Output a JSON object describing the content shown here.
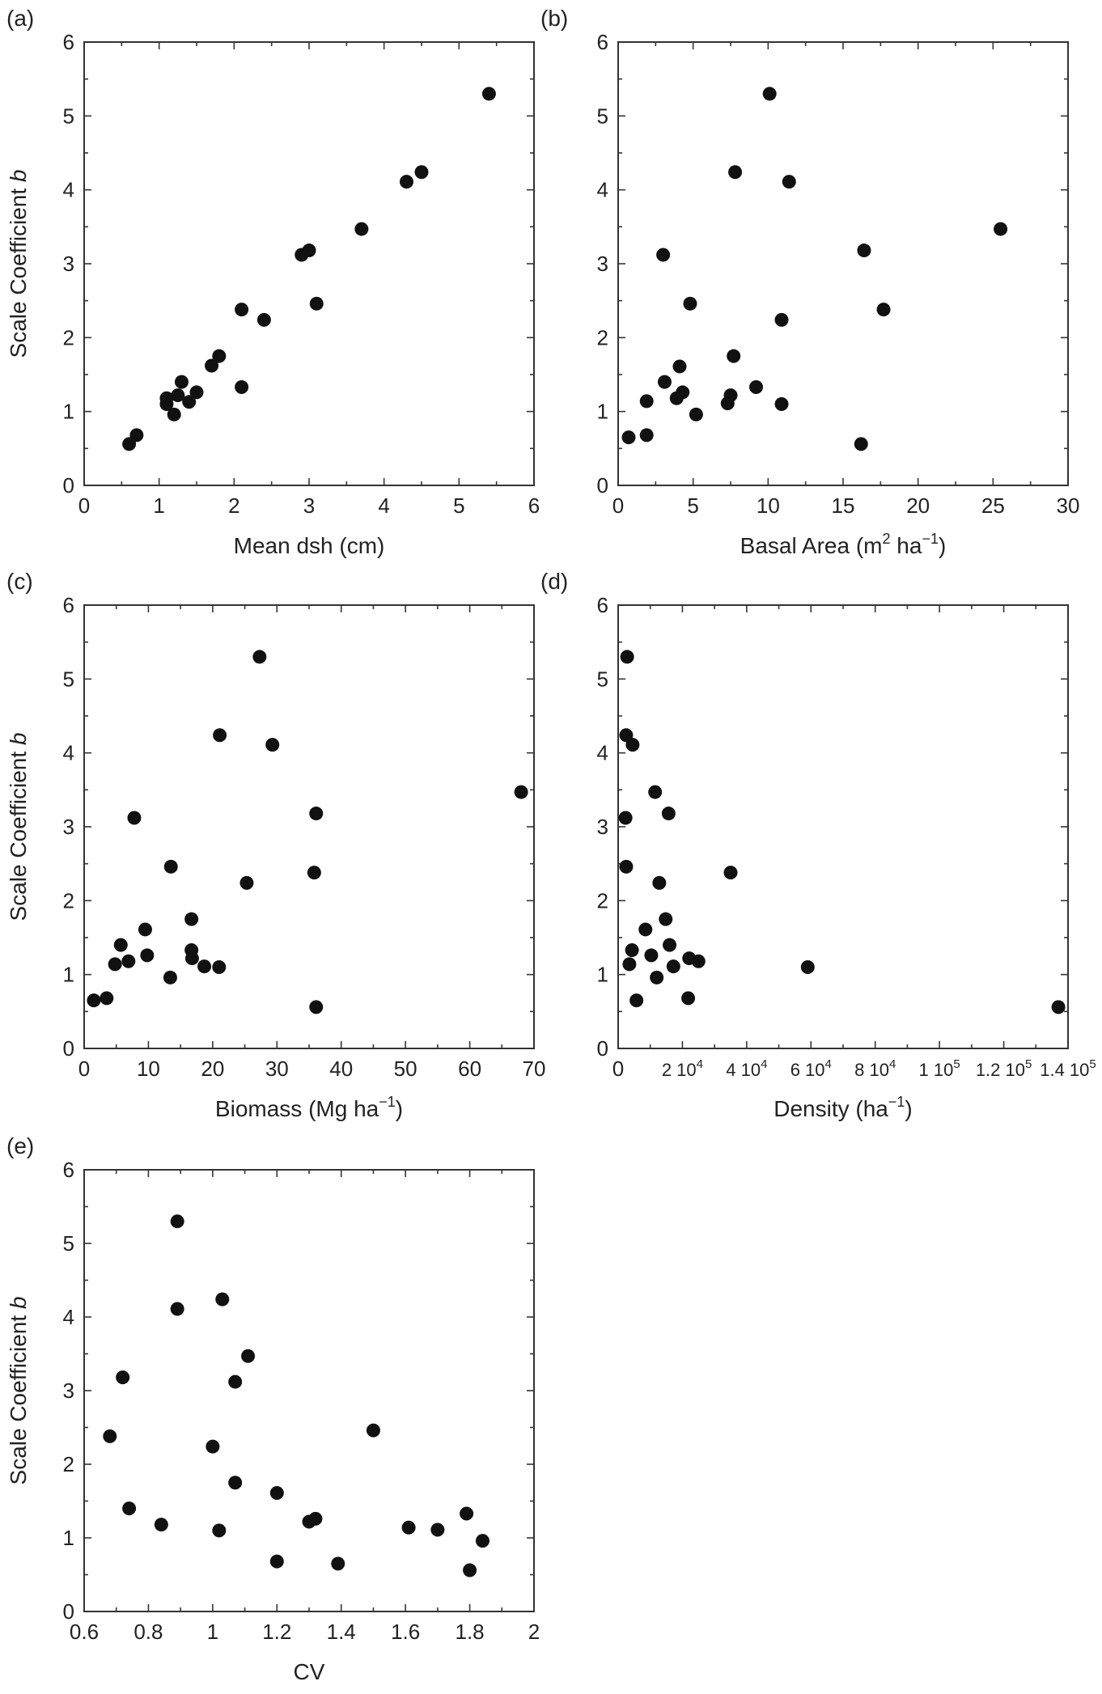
{
  "chart_data": [
    {
      "id": "a",
      "type": "scatter",
      "panel_label": "(a)",
      "xlabel": "Mean dsh (cm)",
      "ylabel_parts": [
        "Scale Coefficient ",
        "b"
      ],
      "xlim": [
        0,
        6
      ],
      "ylim": [
        0,
        6
      ],
      "xticks": [
        {
          "v": 0,
          "t": "0"
        },
        {
          "v": 1,
          "t": "1"
        },
        {
          "v": 2,
          "t": "2"
        },
        {
          "v": 3,
          "t": "3"
        },
        {
          "v": 4,
          "t": "4"
        },
        {
          "v": 5,
          "t": "5"
        },
        {
          "v": 6,
          "t": "6"
        }
      ],
      "yticks": [
        {
          "v": 0,
          "t": "0"
        },
        {
          "v": 1,
          "t": "1"
        },
        {
          "v": 2,
          "t": "2"
        },
        {
          "v": 3,
          "t": "3"
        },
        {
          "v": 4,
          "t": "4"
        },
        {
          "v": 5,
          "t": "5"
        },
        {
          "v": 6,
          "t": "6"
        }
      ],
      "points": [
        [
          0.6,
          0.56
        ],
        [
          0.7,
          0.68
        ],
        [
          1.1,
          1.1
        ],
        [
          1.1,
          1.18
        ],
        [
          1.2,
          0.96
        ],
        [
          1.25,
          1.22
        ],
        [
          1.3,
          1.4
        ],
        [
          1.4,
          1.13
        ],
        [
          1.5,
          1.26
        ],
        [
          1.7,
          1.62
        ],
        [
          1.8,
          1.75
        ],
        [
          2.1,
          1.33
        ],
        [
          2.1,
          2.38
        ],
        [
          2.4,
          2.24
        ],
        [
          2.9,
          3.12
        ],
        [
          3.0,
          3.18
        ],
        [
          3.1,
          2.46
        ],
        [
          3.7,
          3.47
        ],
        [
          4.3,
          4.11
        ],
        [
          4.5,
          4.24
        ],
        [
          5.4,
          5.3
        ]
      ]
    },
    {
      "id": "b",
      "type": "scatter",
      "panel_label": "(b)",
      "xlabel_parts": [
        "Basal Area (m",
        "2",
        " ha",
        "−1",
        ")"
      ],
      "xlim": [
        0,
        30
      ],
      "ylim": [
        0,
        6
      ],
      "xticks": [
        {
          "v": 0,
          "t": "0"
        },
        {
          "v": 5,
          "t": "5"
        },
        {
          "v": 10,
          "t": "10"
        },
        {
          "v": 15,
          "t": "15"
        },
        {
          "v": 20,
          "t": "20"
        },
        {
          "v": 25,
          "t": "25"
        },
        {
          "v": 30,
          "t": "30"
        }
      ],
      "yticks": [
        {
          "v": 0,
          "t": "0"
        },
        {
          "v": 1,
          "t": "1"
        },
        {
          "v": 2,
          "t": "2"
        },
        {
          "v": 3,
          "t": "3"
        },
        {
          "v": 4,
          "t": "4"
        },
        {
          "v": 5,
          "t": "5"
        },
        {
          "v": 6,
          "t": "6"
        }
      ],
      "points": [
        [
          0.7,
          0.65
        ],
        [
          1.9,
          0.68
        ],
        [
          1.9,
          1.14
        ],
        [
          3.0,
          3.12
        ],
        [
          3.1,
          1.4
        ],
        [
          3.9,
          1.18
        ],
        [
          4.1,
          1.61
        ],
        [
          4.3,
          1.26
        ],
        [
          4.8,
          2.46
        ],
        [
          5.2,
          0.96
        ],
        [
          7.3,
          1.11
        ],
        [
          7.5,
          1.22
        ],
        [
          7.7,
          1.75
        ],
        [
          7.8,
          4.24
        ],
        [
          9.2,
          1.33
        ],
        [
          10.1,
          5.3
        ],
        [
          10.9,
          1.1
        ],
        [
          10.9,
          2.24
        ],
        [
          11.4,
          4.11
        ],
        [
          16.2,
          0.56
        ],
        [
          16.4,
          3.18
        ],
        [
          17.7,
          2.38
        ],
        [
          25.5,
          3.47
        ]
      ]
    },
    {
      "id": "c",
      "type": "scatter",
      "panel_label": "(c)",
      "xlabel_parts": [
        "Biomass (Mg ha",
        "−1",
        ")"
      ],
      "ylabel_parts": [
        "Scale Coefficient ",
        "b"
      ],
      "xlim": [
        0,
        70
      ],
      "ylim": [
        0,
        6
      ],
      "xticks": [
        {
          "v": 0,
          "t": "0"
        },
        {
          "v": 10,
          "t": "10"
        },
        {
          "v": 20,
          "t": "20"
        },
        {
          "v": 30,
          "t": "30"
        },
        {
          "v": 40,
          "t": "40"
        },
        {
          "v": 50,
          "t": "50"
        },
        {
          "v": 60,
          "t": "60"
        },
        {
          "v": 70,
          "t": "70"
        }
      ],
      "yticks": [
        {
          "v": 0,
          "t": "0"
        },
        {
          "v": 1,
          "t": "1"
        },
        {
          "v": 2,
          "t": "2"
        },
        {
          "v": 3,
          "t": "3"
        },
        {
          "v": 4,
          "t": "4"
        },
        {
          "v": 5,
          "t": "5"
        },
        {
          "v": 6,
          "t": "6"
        }
      ],
      "points": [
        [
          1.5,
          0.65
        ],
        [
          3.5,
          0.68
        ],
        [
          4.8,
          1.14
        ],
        [
          5.7,
          1.4
        ],
        [
          6.9,
          1.18
        ],
        [
          7.8,
          3.12
        ],
        [
          9.5,
          1.61
        ],
        [
          9.8,
          1.26
        ],
        [
          13.4,
          0.96
        ],
        [
          13.5,
          2.46
        ],
        [
          16.7,
          1.75
        ],
        [
          16.7,
          1.33
        ],
        [
          16.8,
          1.22
        ],
        [
          18.7,
          1.11
        ],
        [
          21.0,
          1.1
        ],
        [
          21.1,
          4.24
        ],
        [
          25.3,
          2.24
        ],
        [
          27.3,
          5.3
        ],
        [
          29.3,
          4.11
        ],
        [
          35.8,
          2.38
        ],
        [
          36.1,
          0.56
        ],
        [
          36.1,
          3.18
        ],
        [
          68.0,
          3.47
        ]
      ]
    },
    {
      "id": "d",
      "type": "scatter",
      "panel_label": "(d)",
      "xlabel_parts": [
        "Density (ha",
        "−1",
        ")"
      ],
      "xlim": [
        0,
        140000
      ],
      "ylim": [
        0,
        6
      ],
      "xticks": [
        {
          "v": 0,
          "t": "0"
        },
        {
          "v": 20000,
          "t": "2 10",
          "s": "4"
        },
        {
          "v": 40000,
          "t": "4 10",
          "s": "4"
        },
        {
          "v": 60000,
          "t": "6 10",
          "s": "4"
        },
        {
          "v": 80000,
          "t": "8 10",
          "s": "4"
        },
        {
          "v": 100000,
          "t": "1 10",
          "s": "5"
        },
        {
          "v": 120000,
          "t": "1.2 10",
          "s": "5"
        },
        {
          "v": 140000,
          "t": "1.4 10",
          "s": "5"
        }
      ],
      "yticks": [
        {
          "v": 0,
          "t": "0"
        },
        {
          "v": 1,
          "t": "1"
        },
        {
          "v": 2,
          "t": "2"
        },
        {
          "v": 3,
          "t": "3"
        },
        {
          "v": 4,
          "t": "4"
        },
        {
          "v": 5,
          "t": "5"
        },
        {
          "v": 6,
          "t": "6"
        }
      ],
      "points": [
        [
          2800,
          5.3
        ],
        [
          2500,
          4.24
        ],
        [
          4500,
          4.11
        ],
        [
          2300,
          3.12
        ],
        [
          2500,
          2.46
        ],
        [
          3500,
          1.14
        ],
        [
          4300,
          1.33
        ],
        [
          5700,
          0.65
        ],
        [
          8500,
          1.61
        ],
        [
          10300,
          1.26
        ],
        [
          11500,
          3.47
        ],
        [
          12000,
          0.96
        ],
        [
          12800,
          2.24
        ],
        [
          14800,
          1.75
        ],
        [
          15700,
          3.18
        ],
        [
          16000,
          1.4
        ],
        [
          17200,
          1.11
        ],
        [
          21800,
          0.68
        ],
        [
          22100,
          1.22
        ],
        [
          25000,
          1.18
        ],
        [
          35000,
          2.38
        ],
        [
          59000,
          1.1
        ],
        [
          137000,
          0.56
        ]
      ]
    },
    {
      "id": "e",
      "type": "scatter",
      "panel_label": "(e)",
      "xlabel": "CV",
      "ylabel_parts": [
        "Scale Coefficient ",
        "b"
      ],
      "xlim": [
        0.6,
        2
      ],
      "ylim": [
        0,
        6
      ],
      "xticks": [
        {
          "v": 0.6,
          "t": "0.6"
        },
        {
          "v": 0.8,
          "t": "0.8"
        },
        {
          "v": 1.0,
          "t": "1"
        },
        {
          "v": 1.2,
          "t": "1.2"
        },
        {
          "v": 1.4,
          "t": "1.4"
        },
        {
          "v": 1.6,
          "t": "1.6"
        },
        {
          "v": 1.8,
          "t": "1.8"
        },
        {
          "v": 2.0,
          "t": "2"
        }
      ],
      "yticks": [
        {
          "v": 0,
          "t": "0"
        },
        {
          "v": 1,
          "t": "1"
        },
        {
          "v": 2,
          "t": "2"
        },
        {
          "v": 3,
          "t": "3"
        },
        {
          "v": 4,
          "t": "4"
        },
        {
          "v": 5,
          "t": "5"
        },
        {
          "v": 6,
          "t": "6"
        }
      ],
      "points": [
        [
          0.68,
          2.38
        ],
        [
          0.72,
          3.18
        ],
        [
          0.74,
          1.4
        ],
        [
          0.84,
          1.18
        ],
        [
          0.89,
          5.3
        ],
        [
          0.89,
          4.11
        ],
        [
          1.0,
          2.24
        ],
        [
          1.02,
          1.1
        ],
        [
          1.03,
          4.24
        ],
        [
          1.07,
          3.12
        ],
        [
          1.07,
          1.75
        ],
        [
          1.11,
          3.47
        ],
        [
          1.2,
          0.68
        ],
        [
          1.2,
          1.61
        ],
        [
          1.3,
          1.22
        ],
        [
          1.32,
          1.26
        ],
        [
          1.39,
          0.65
        ],
        [
          1.5,
          2.46
        ],
        [
          1.61,
          1.14
        ],
        [
          1.7,
          1.11
        ],
        [
          1.79,
          1.33
        ],
        [
          1.8,
          0.56
        ],
        [
          1.84,
          0.96
        ]
      ]
    }
  ]
}
